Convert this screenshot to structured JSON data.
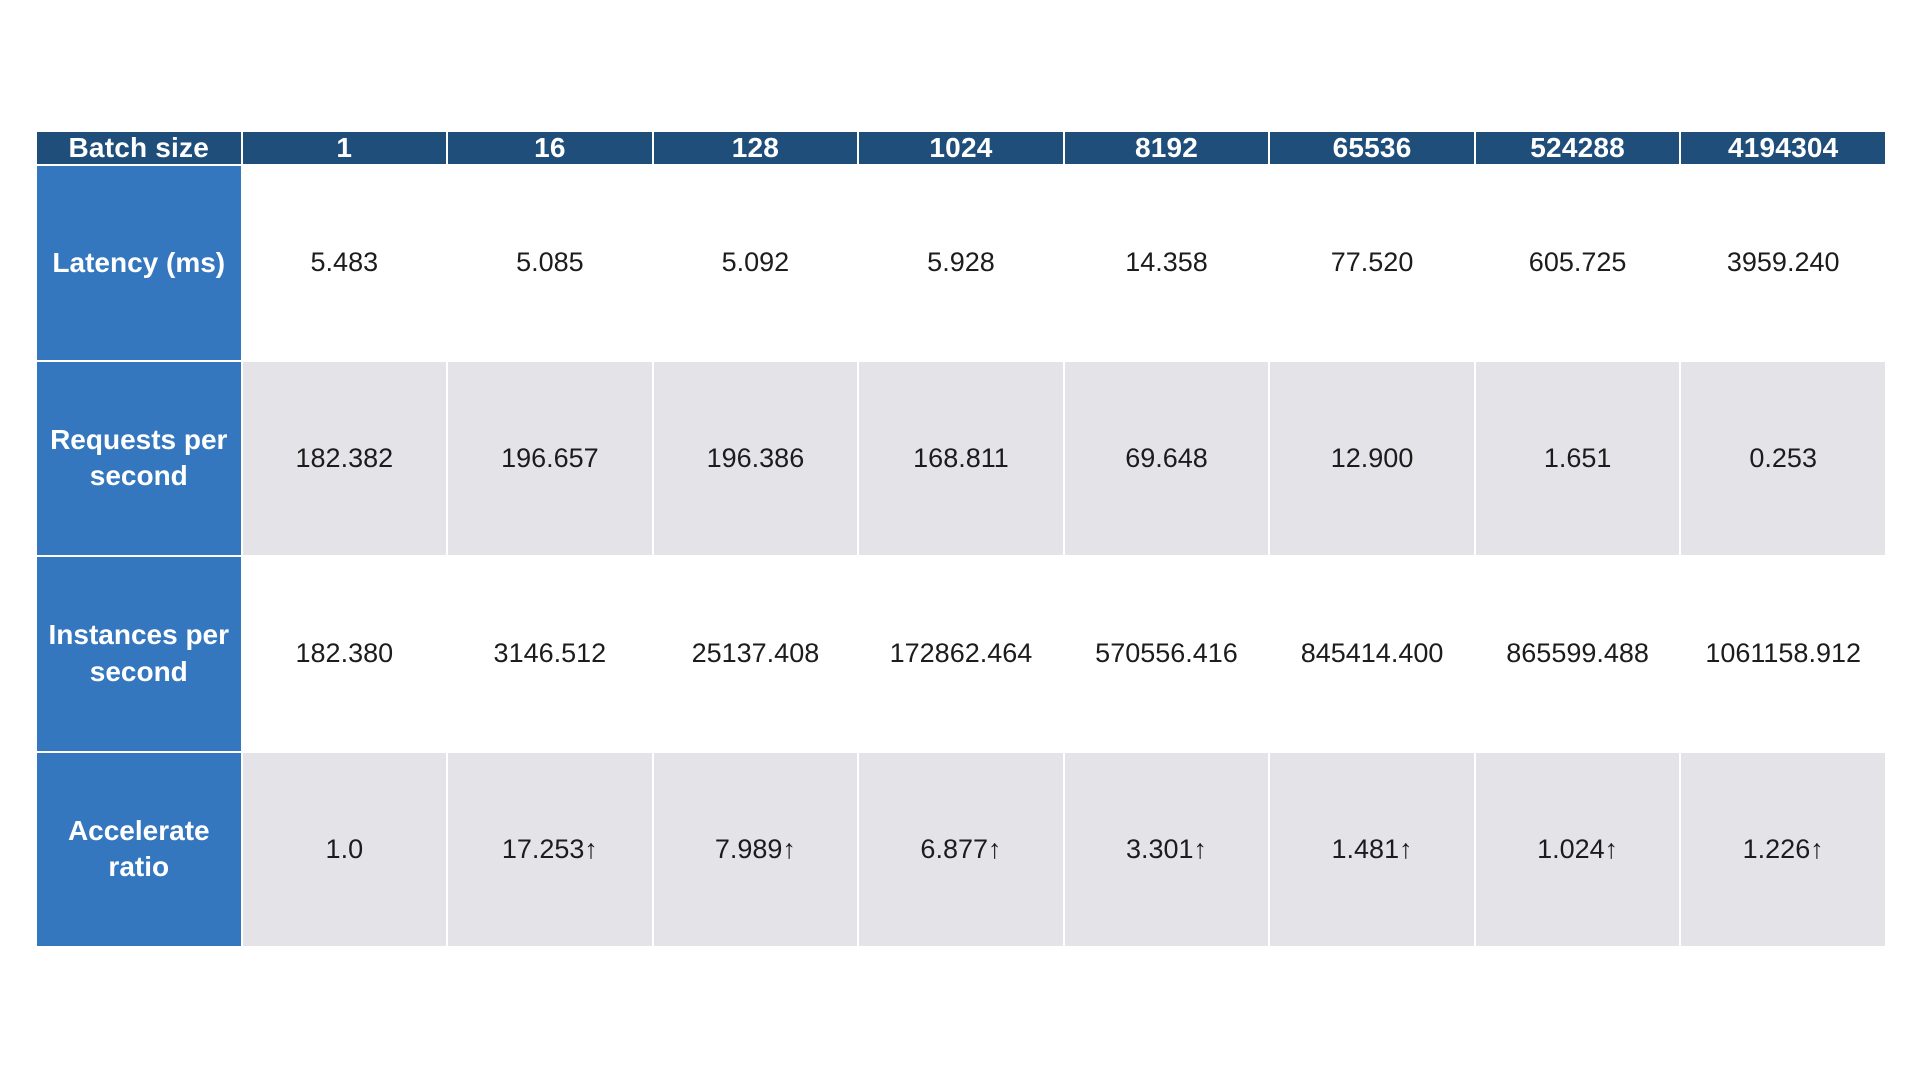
{
  "colors": {
    "page-bg": "#FFFFFF",
    "header-bg": "#1F4E7B",
    "label-bg": "#3577BE",
    "alt-row-bg": "#E3E3E8",
    "row-bg": "#FFFFFF",
    "header-text": "#FFFFFF",
    "cell-text": "#1C1C1C"
  },
  "chart_data": {
    "type": "table",
    "title": "Batch size benchmark table",
    "layout_hints": {
      "header_row": "dark blue, white bold text",
      "label_column": "medium blue, white bold text",
      "data_rows": "alternating white and light gray",
      "grid": "thin light separators"
    },
    "columns": [
      "Batch size",
      "1",
      "16",
      "128",
      "1024",
      "8192",
      "65536",
      "524288",
      "4194304"
    ],
    "rows": [
      {
        "label": "Latency (ms)",
        "values": [
          "5.483",
          "5.085",
          "5.092",
          "5.928",
          "14.358",
          "77.520",
          "605.725",
          "3959.240"
        ]
      },
      {
        "label": "Requests per second",
        "values": [
          "182.382",
          "196.657",
          "196.386",
          "168.811",
          "69.648",
          "12.900",
          "1.651",
          "0.253"
        ]
      },
      {
        "label": "Instances per second",
        "values": [
          "182.380",
          "3146.512",
          "25137.408",
          "172862.464",
          "570556.416",
          "845414.400",
          "865599.488",
          "1061158.912"
        ]
      },
      {
        "label": "Accelerate ratio",
        "values": [
          "1.0",
          "17.253↑",
          "7.989↑",
          "6.877↑",
          "3.301↑",
          "1.481↑",
          "1.024↑",
          "1.226↑"
        ]
      }
    ]
  }
}
